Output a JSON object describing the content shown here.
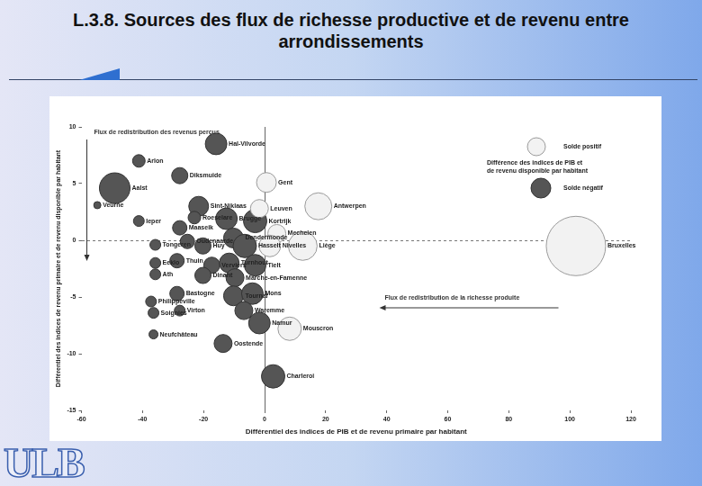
{
  "logo": "ULB",
  "chart_data": {
    "type": "bubble",
    "title": "L.3.8. Sources des flux de richesse productive et de revenu entre arrondissements",
    "x_label": "Différentiel des indices de PIB et de revenu primaire par habitant",
    "y_label": "Différentiel des indices de revenu primaire et de revenu disponible par habitant",
    "xlim": [
      -60,
      120
    ],
    "xticks": [
      -60,
      -40,
      -20,
      0,
      20,
      40,
      60,
      80,
      100,
      120
    ],
    "ylim": [
      -15,
      10
    ],
    "yticks": [
      -15,
      -10,
      -5,
      0,
      5,
      10
    ],
    "grid": false,
    "legend": "top-right",
    "legend_title": [
      "Différence des indices de PIB et",
      "de revenu disponible par habitant"
    ],
    "annotations": [
      "Flux de redistribution des revenus perçus",
      "Flux de redistribution de la richesse produite"
    ],
    "series": [
      {
        "name": "Solde positif",
        "color": "#f2f2f2",
        "points": [
          {
            "label": "Gent",
            "x": 0.6,
            "y": 5.1,
            "size": 11
          },
          {
            "label": "Leuven",
            "x": -1.7,
            "y": 2.8,
            "size": 10
          },
          {
            "label": "Antwerpen",
            "x": 17.6,
            "y": 3.0,
            "size": 15
          },
          {
            "label": "Mechelen",
            "x": 4.0,
            "y": 0.6,
            "size": 10
          },
          {
            "label": "Liège",
            "x": 12.5,
            "y": -0.5,
            "size": 16
          },
          {
            "label": "Nivelles",
            "x": 1.7,
            "y": -0.5,
            "size": 12
          },
          {
            "label": "Bruxelles",
            "x": 102,
            "y": -0.5,
            "size": 33
          },
          {
            "label": "Mouscron",
            "x": 8.2,
            "y": -7.8,
            "size": 13
          }
        ]
      },
      {
        "name": "Solde négatif",
        "color": "#555555",
        "points": [
          {
            "label": "Hal-Vilvorde",
            "x": -15.9,
            "y": 8.5,
            "size": 12
          },
          {
            "label": "Arlon",
            "x": -41.2,
            "y": 7.0,
            "size": 7
          },
          {
            "label": "Diksmuide",
            "x": -27.8,
            "y": 5.7,
            "size": 9
          },
          {
            "label": "Aalst",
            "x": -49.1,
            "y": 4.6,
            "size": 17
          },
          {
            "label": "Veurne",
            "x": -54.8,
            "y": 3.1,
            "size": 4
          },
          {
            "label": "Sint-Niklaas",
            "x": -21.6,
            "y": 3.0,
            "size": 11
          },
          {
            "label": "Roeselare",
            "x": -23,
            "y": 2.0,
            "size": 7
          },
          {
            "label": "Brugge",
            "x": -12.5,
            "y": 1.9,
            "size": 12
          },
          {
            "label": "Ieper",
            "x": -41.2,
            "y": 1.7,
            "size": 6
          },
          {
            "label": "Kortrijk",
            "x": -3.1,
            "y": 1.7,
            "size": 13
          },
          {
            "label": "Maaseik",
            "x": -27.8,
            "y": 1.1,
            "size": 8
          },
          {
            "label": "Tongeren",
            "x": -35.8,
            "y": -0.4,
            "size": 6
          },
          {
            "label": "Oudenaarde",
            "x": -25.3,
            "y": -0.1,
            "size": 8
          },
          {
            "label": "Huy",
            "x": -20.2,
            "y": -0.5,
            "size": 9
          },
          {
            "label": "Dendermonde",
            "x": -10.2,
            "y": 0.2,
            "size": 11
          },
          {
            "label": "Hasselt",
            "x": -6.5,
            "y": -0.5,
            "size": 13
          },
          {
            "label": "Verviers",
            "x": -17.3,
            "y": -2.2,
            "size": 9
          },
          {
            "label": "Eeklo",
            "x": -35.8,
            "y": -2.0,
            "size": 6
          },
          {
            "label": "Thuin",
            "x": -28.7,
            "y": -1.8,
            "size": 8
          },
          {
            "label": "Ath",
            "x": -35.8,
            "y": -3.0,
            "size": 6
          },
          {
            "label": "Dinant",
            "x": -20.2,
            "y": -3.1,
            "size": 9
          },
          {
            "label": "Turnhout",
            "x": -11.6,
            "y": -2.0,
            "size": 11
          },
          {
            "label": "Tielt",
            "x": -3.1,
            "y": -2.2,
            "size": 12
          },
          {
            "label": "Marche-en-Famenne",
            "x": -9.7,
            "y": -3.3,
            "size": 10
          },
          {
            "label": "Bastogne",
            "x": -28.7,
            "y": -4.7,
            "size": 8
          },
          {
            "label": "Philippeville",
            "x": -37.2,
            "y": -5.4,
            "size": 6
          },
          {
            "label": "Virton",
            "x": -27.8,
            "y": -6.2,
            "size": 6
          },
          {
            "label": "Soignies",
            "x": -36.4,
            "y": -6.4,
            "size": 6
          },
          {
            "label": "Tournai",
            "x": -10.2,
            "y": -4.9,
            "size": 11
          },
          {
            "label": "Mons",
            "x": -4.0,
            "y": -4.7,
            "size": 12
          },
          {
            "label": "Waremme",
            "x": -6.8,
            "y": -6.2,
            "size": 10
          },
          {
            "label": "Namur",
            "x": -1.7,
            "y": -7.3,
            "size": 12
          },
          {
            "label": "Neufchâteau",
            "x": -36.4,
            "y": -8.3,
            "size": 5
          },
          {
            "label": "Oostende",
            "x": -13.6,
            "y": -9.1,
            "size": 10
          },
          {
            "label": "Charleroi",
            "x": 2.8,
            "y": -12.0,
            "size": 13
          }
        ]
      }
    ]
  }
}
